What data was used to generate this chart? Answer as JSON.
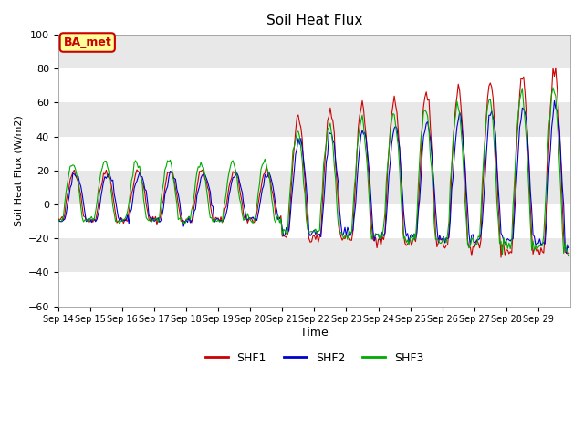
{
  "title": "Soil Heat Flux",
  "ylabel": "Soil Heat Flux (W/m2)",
  "xlabel": "Time",
  "ylim": [
    -60,
    100
  ],
  "annotation": "BA_met",
  "annotation_color": "#cc0000",
  "annotation_bg": "#ffff99",
  "legend_labels": [
    "SHF1",
    "SHF2",
    "SHF3"
  ],
  "line_colors": [
    "#cc0000",
    "#0000cc",
    "#00aa00"
  ],
  "xtick_labels": [
    "Sep 14",
    "Sep 15",
    "Sep 16",
    "Sep 17",
    "Sep 18",
    "Sep 19",
    "Sep 20",
    "Sep 21",
    "Sep 22",
    "Sep 23",
    "Sep 24",
    "Sep 25",
    "Sep 26",
    "Sep 27",
    "Sep 28",
    "Sep 29"
  ],
  "plot_bg_light": "#f5f5f5",
  "plot_bg_dark": "#e8e8e8",
  "grid_color": "#ffffff"
}
